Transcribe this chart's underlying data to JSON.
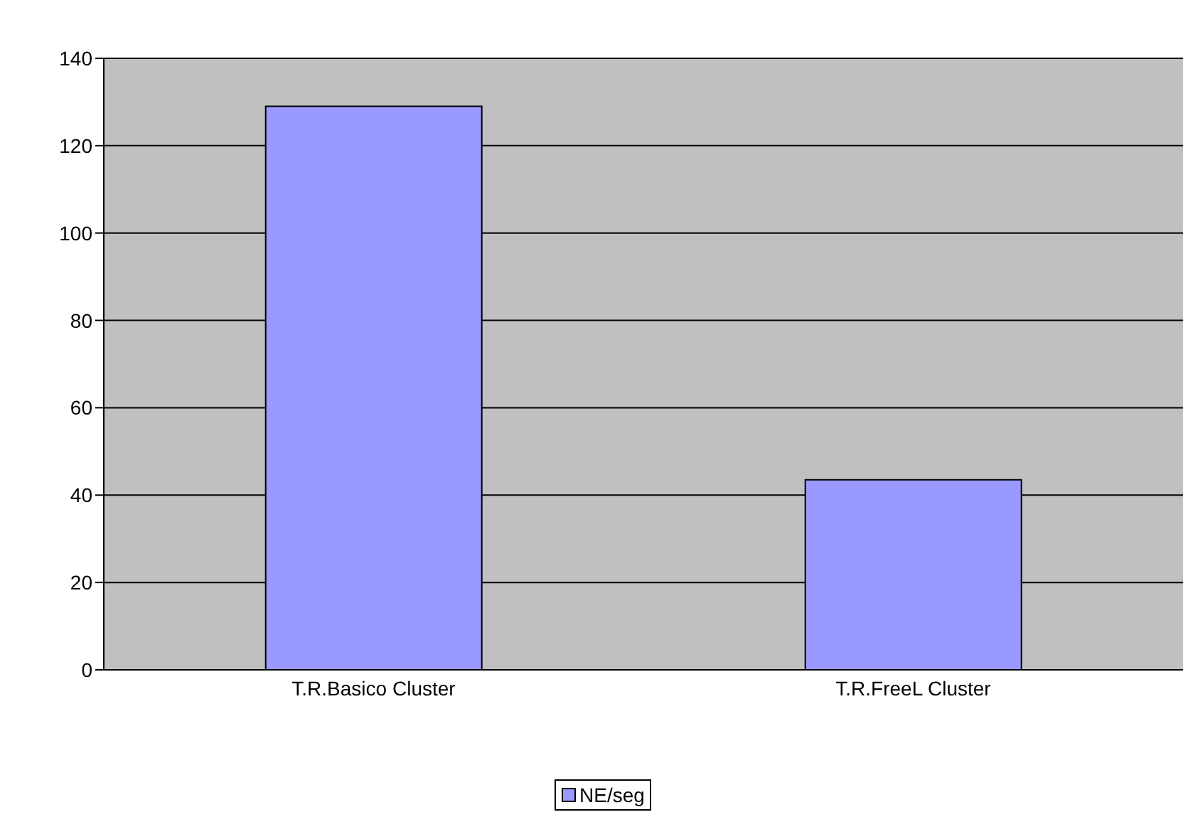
{
  "chart_data": {
    "type": "bar",
    "categories": [
      "T.R.Basico Cluster",
      "T.R.FreeL Cluster"
    ],
    "series": [
      {
        "name": "NE/seg",
        "color": "#9999ff",
        "values": [
          129,
          43.5
        ]
      }
    ],
    "ylim": [
      0,
      140
    ],
    "yticks": [
      0,
      20,
      40,
      60,
      80,
      100,
      120,
      140
    ],
    "grid": "y",
    "legend": "bottom"
  }
}
